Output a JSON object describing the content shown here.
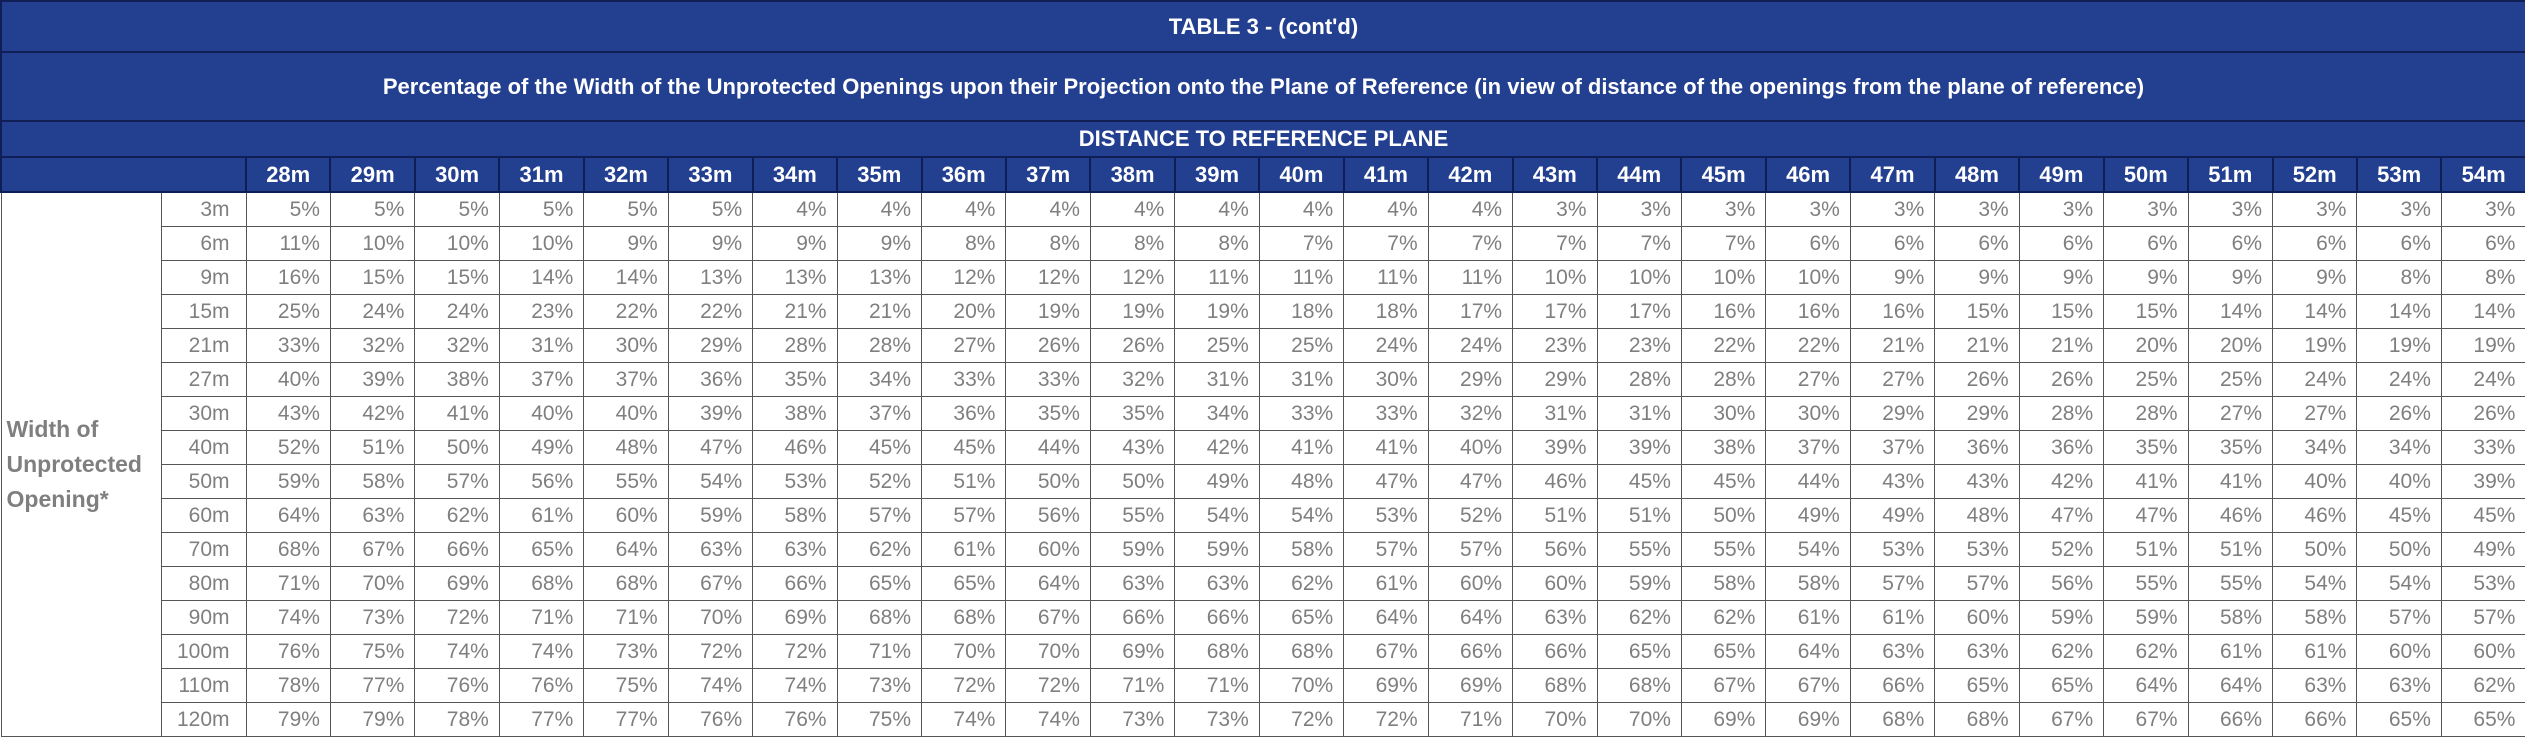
{
  "table": {
    "title": "TABLE 3 - (cont'd)",
    "subtitle": "Percentage of the Width of the Unprotected Openings upon their Projection onto the Plane of Reference (in view of distance of the openings from the plane of reference)",
    "distance_header": "DISTANCE TO REFERENCE PLANE",
    "row_group_label": [
      "Width of",
      "Unprotected",
      "Opening*"
    ],
    "columns": [
      "28m",
      "29m",
      "30m",
      "31m",
      "32m",
      "33m",
      "34m",
      "35m",
      "36m",
      "37m",
      "38m",
      "39m",
      "40m",
      "41m",
      "42m",
      "43m",
      "44m",
      "45m",
      "46m",
      "47m",
      "48m",
      "49m",
      "50m",
      "51m",
      "52m",
      "53m",
      "54m"
    ],
    "rows": [
      {
        "width": "3m",
        "values": [
          "5%",
          "5%",
          "5%",
          "5%",
          "5%",
          "5%",
          "4%",
          "4%",
          "4%",
          "4%",
          "4%",
          "4%",
          "4%",
          "4%",
          "4%",
          "3%",
          "3%",
          "3%",
          "3%",
          "3%",
          "3%",
          "3%",
          "3%",
          "3%",
          "3%",
          "3%",
          "3%"
        ]
      },
      {
        "width": "6m",
        "values": [
          "11%",
          "10%",
          "10%",
          "10%",
          "9%",
          "9%",
          "9%",
          "9%",
          "8%",
          "8%",
          "8%",
          "8%",
          "7%",
          "7%",
          "7%",
          "7%",
          "7%",
          "7%",
          "6%",
          "6%",
          "6%",
          "6%",
          "6%",
          "6%",
          "6%",
          "6%",
          "6%"
        ]
      },
      {
        "width": "9m",
        "values": [
          "16%",
          "15%",
          "15%",
          "14%",
          "14%",
          "13%",
          "13%",
          "13%",
          "12%",
          "12%",
          "12%",
          "11%",
          "11%",
          "11%",
          "11%",
          "10%",
          "10%",
          "10%",
          "10%",
          "9%",
          "9%",
          "9%",
          "9%",
          "9%",
          "9%",
          "8%",
          "8%"
        ]
      },
      {
        "width": "15m",
        "values": [
          "25%",
          "24%",
          "24%",
          "23%",
          "22%",
          "22%",
          "21%",
          "21%",
          "20%",
          "19%",
          "19%",
          "19%",
          "18%",
          "18%",
          "17%",
          "17%",
          "17%",
          "16%",
          "16%",
          "16%",
          "15%",
          "15%",
          "15%",
          "14%",
          "14%",
          "14%",
          "14%"
        ]
      },
      {
        "width": "21m",
        "values": [
          "33%",
          "32%",
          "32%",
          "31%",
          "30%",
          "29%",
          "28%",
          "28%",
          "27%",
          "26%",
          "26%",
          "25%",
          "25%",
          "24%",
          "24%",
          "23%",
          "23%",
          "22%",
          "22%",
          "21%",
          "21%",
          "21%",
          "20%",
          "20%",
          "19%",
          "19%",
          "19%"
        ]
      },
      {
        "width": "27m",
        "values": [
          "40%",
          "39%",
          "38%",
          "37%",
          "37%",
          "36%",
          "35%",
          "34%",
          "33%",
          "33%",
          "32%",
          "31%",
          "31%",
          "30%",
          "29%",
          "29%",
          "28%",
          "28%",
          "27%",
          "27%",
          "26%",
          "26%",
          "25%",
          "25%",
          "24%",
          "24%",
          "24%"
        ]
      },
      {
        "width": "30m",
        "values": [
          "43%",
          "42%",
          "41%",
          "40%",
          "40%",
          "39%",
          "38%",
          "37%",
          "36%",
          "35%",
          "35%",
          "34%",
          "33%",
          "33%",
          "32%",
          "31%",
          "31%",
          "30%",
          "30%",
          "29%",
          "29%",
          "28%",
          "28%",
          "27%",
          "27%",
          "26%",
          "26%"
        ]
      },
      {
        "width": "40m",
        "values": [
          "52%",
          "51%",
          "50%",
          "49%",
          "48%",
          "47%",
          "46%",
          "45%",
          "45%",
          "44%",
          "43%",
          "42%",
          "41%",
          "41%",
          "40%",
          "39%",
          "39%",
          "38%",
          "37%",
          "37%",
          "36%",
          "36%",
          "35%",
          "35%",
          "34%",
          "34%",
          "33%"
        ]
      },
      {
        "width": "50m",
        "values": [
          "59%",
          "58%",
          "57%",
          "56%",
          "55%",
          "54%",
          "53%",
          "52%",
          "51%",
          "50%",
          "50%",
          "49%",
          "48%",
          "47%",
          "47%",
          "46%",
          "45%",
          "45%",
          "44%",
          "43%",
          "43%",
          "42%",
          "41%",
          "41%",
          "40%",
          "40%",
          "39%"
        ]
      },
      {
        "width": "60m",
        "values": [
          "64%",
          "63%",
          "62%",
          "61%",
          "60%",
          "59%",
          "58%",
          "57%",
          "57%",
          "56%",
          "55%",
          "54%",
          "54%",
          "53%",
          "52%",
          "51%",
          "51%",
          "50%",
          "49%",
          "49%",
          "48%",
          "47%",
          "47%",
          "46%",
          "46%",
          "45%",
          "45%"
        ]
      },
      {
        "width": "70m",
        "values": [
          "68%",
          "67%",
          "66%",
          "65%",
          "64%",
          "63%",
          "63%",
          "62%",
          "61%",
          "60%",
          "59%",
          "59%",
          "58%",
          "57%",
          "57%",
          "56%",
          "55%",
          "55%",
          "54%",
          "53%",
          "53%",
          "52%",
          "51%",
          "51%",
          "50%",
          "50%",
          "49%"
        ]
      },
      {
        "width": "80m",
        "values": [
          "71%",
          "70%",
          "69%",
          "68%",
          "68%",
          "67%",
          "66%",
          "65%",
          "65%",
          "64%",
          "63%",
          "63%",
          "62%",
          "61%",
          "60%",
          "60%",
          "59%",
          "58%",
          "58%",
          "57%",
          "57%",
          "56%",
          "55%",
          "55%",
          "54%",
          "54%",
          "53%"
        ]
      },
      {
        "width": "90m",
        "values": [
          "74%",
          "73%",
          "72%",
          "71%",
          "71%",
          "70%",
          "69%",
          "68%",
          "68%",
          "67%",
          "66%",
          "66%",
          "65%",
          "64%",
          "64%",
          "63%",
          "62%",
          "62%",
          "61%",
          "61%",
          "60%",
          "59%",
          "59%",
          "58%",
          "58%",
          "57%",
          "57%"
        ]
      },
      {
        "width": "100m",
        "values": [
          "76%",
          "75%",
          "74%",
          "74%",
          "73%",
          "72%",
          "72%",
          "71%",
          "70%",
          "70%",
          "69%",
          "68%",
          "68%",
          "67%",
          "66%",
          "66%",
          "65%",
          "65%",
          "64%",
          "63%",
          "63%",
          "62%",
          "62%",
          "61%",
          "61%",
          "60%",
          "60%"
        ]
      },
      {
        "width": "110m",
        "values": [
          "78%",
          "77%",
          "76%",
          "76%",
          "75%",
          "74%",
          "74%",
          "73%",
          "72%",
          "72%",
          "71%",
          "71%",
          "70%",
          "69%",
          "69%",
          "68%",
          "68%",
          "67%",
          "67%",
          "66%",
          "65%",
          "65%",
          "64%",
          "64%",
          "63%",
          "63%",
          "62%"
        ]
      },
      {
        "width": "120m",
        "values": [
          "79%",
          "79%",
          "78%",
          "77%",
          "77%",
          "76%",
          "76%",
          "75%",
          "74%",
          "74%",
          "73%",
          "73%",
          "72%",
          "72%",
          "71%",
          "70%",
          "70%",
          "69%",
          "69%",
          "68%",
          "68%",
          "67%",
          "67%",
          "66%",
          "66%",
          "65%",
          "65%"
        ]
      }
    ]
  },
  "colors": {
    "header_bg": "#233f8f",
    "header_text": "#ffffff",
    "body_text": "#7f7f7f",
    "grid": "#555555"
  }
}
